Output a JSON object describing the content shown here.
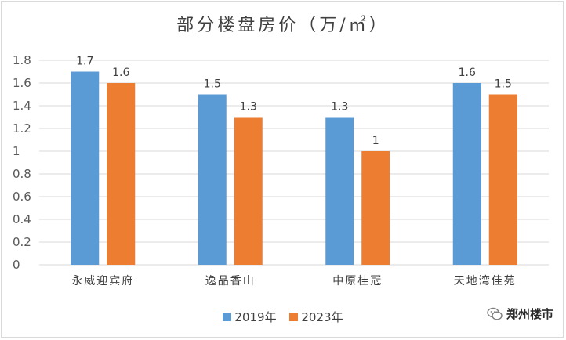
{
  "chart_data": {
    "type": "bar",
    "title": "部分楼盘房价（万/㎡）",
    "categories": [
      "永威迎宾府",
      "逸品香山",
      "中原桂冠",
      "天地湾佳苑"
    ],
    "series": [
      {
        "name": "2019年",
        "values": [
          1.7,
          1.5,
          1.3,
          1.6
        ],
        "color": "#5b9bd5"
      },
      {
        "name": "2023年",
        "values": [
          1.6,
          1.3,
          1.0,
          1.5
        ],
        "color": "#ed7d31"
      }
    ],
    "data_labels": [
      [
        "1.7",
        "1.5",
        "1.3",
        "1.6"
      ],
      [
        "1.6",
        "1.3",
        "1",
        "1.5"
      ]
    ],
    "ylim": [
      0,
      1.8
    ],
    "yticks": [
      "0",
      "0.2",
      "0.4",
      "0.6",
      "0.8",
      "1",
      "1.2",
      "1.4",
      "1.6",
      "1.8"
    ],
    "grid": true,
    "legend_position": "bottom"
  },
  "watermark": {
    "text": "郑州楼市",
    "icon": "wechat-icon"
  }
}
